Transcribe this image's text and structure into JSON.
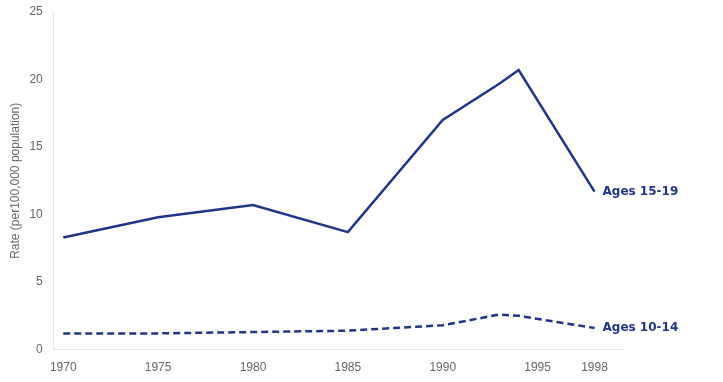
{
  "chart_data": {
    "type": "line",
    "ylabel": "Rate (per100,000 population)",
    "xlim": [
      1969.5,
      1999.5
    ],
    "xticks": [
      1970,
      1975,
      1980,
      1985,
      1990,
      1995,
      1998
    ],
    "ylim": [
      0,
      25
    ],
    "yticks": [
      0,
      5,
      10,
      15,
      20,
      25
    ],
    "grid": false,
    "series": [
      {
        "name": "Ages 15-19",
        "color": "#1F3587",
        "line_style": "solid",
        "x": [
          1970,
          1975,
          1980,
          1985,
          1990,
          1993,
          1994,
          1998
        ],
        "values": [
          8.3,
          9.8,
          10.7,
          8.7,
          17.0,
          19.7,
          20.7,
          11.7
        ]
      },
      {
        "name": "Ages 10-14",
        "color": "#1F3587",
        "line_style": "dashed",
        "x": [
          1970,
          1975,
          1980,
          1985,
          1990,
          1993,
          1994,
          1998
        ],
        "values": [
          1.2,
          1.2,
          1.3,
          1.4,
          1.8,
          2.6,
          2.5,
          1.6
        ]
      }
    ]
  }
}
